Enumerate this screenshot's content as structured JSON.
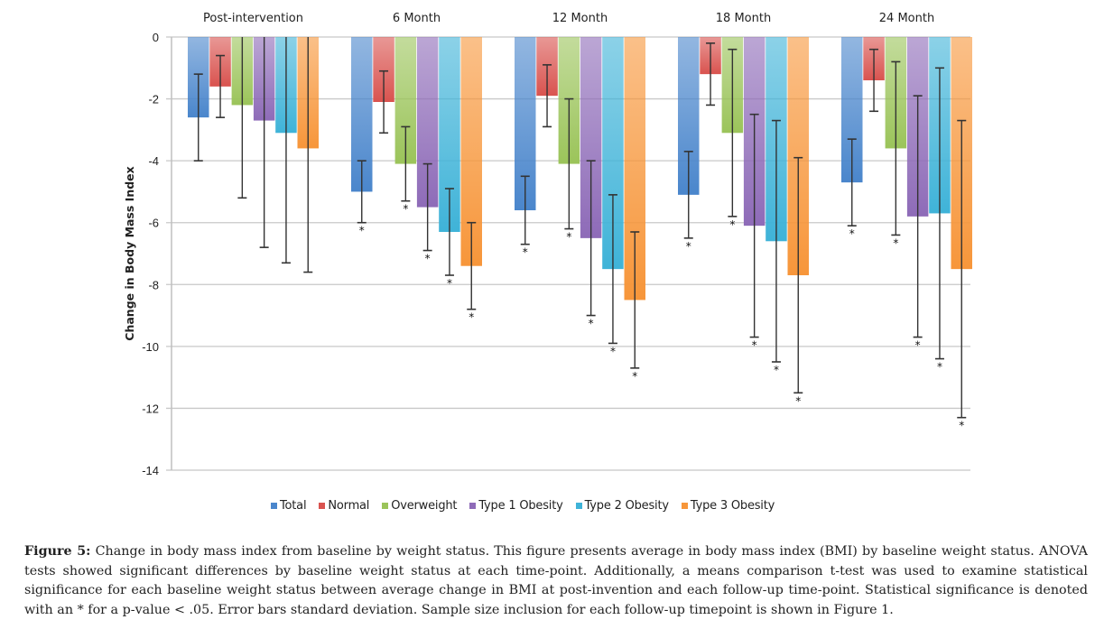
{
  "chart_data": {
    "type": "bar",
    "title": "",
    "xlabel": "",
    "ylabel": "Change in Body Mass Index",
    "ylim": [
      -14,
      0
    ],
    "yticks": [
      0,
      -2,
      -4,
      -6,
      -8,
      -10,
      -12,
      -14
    ],
    "ytick_labels": [
      "0",
      "-2",
      "-4",
      "-6",
      "-8",
      "-10",
      "-12",
      "-14"
    ],
    "grid": true,
    "legend_position": "bottom",
    "categories": [
      "Post-intervention",
      "6 Month",
      "12 Month",
      "18 Month",
      "24 Month"
    ],
    "series": [
      {
        "name": "Total",
        "color": "#4a86cc",
        "values": [
          -2.6,
          -5.0,
          -5.6,
          -5.1,
          -4.7
        ],
        "error": [
          1.4,
          1.0,
          1.1,
          1.4,
          1.4
        ],
        "significant": [
          false,
          true,
          true,
          true,
          true
        ]
      },
      {
        "name": "Normal",
        "color": "#d9534f",
        "values": [
          -1.6,
          -2.1,
          -1.9,
          -1.2,
          -1.4
        ],
        "error": [
          1.0,
          1.0,
          1.0,
          1.0,
          1.0
        ],
        "significant": [
          false,
          false,
          false,
          false,
          false
        ]
      },
      {
        "name": "Overweight",
        "color": "#9bc45a",
        "values": [
          -2.2,
          -4.1,
          -4.1,
          -3.1,
          -3.6
        ],
        "error": [
          3.0,
          1.2,
          2.1,
          2.7,
          2.8
        ],
        "significant": [
          false,
          true,
          true,
          true,
          true
        ]
      },
      {
        "name": "Type 1 Obesity",
        "color": "#8e6bb8",
        "values": [
          -2.7,
          -5.5,
          -6.5,
          -6.1,
          -5.8
        ],
        "error": [
          4.1,
          1.4,
          2.5,
          3.6,
          3.9
        ],
        "significant": [
          false,
          true,
          true,
          true,
          true
        ]
      },
      {
        "name": "Type 2 Obesity",
        "color": "#3fb3d8",
        "values": [
          -3.1,
          -6.3,
          -7.5,
          -6.6,
          -5.7
        ],
        "error": [
          4.2,
          1.4,
          2.4,
          3.9,
          4.7
        ],
        "significant": [
          false,
          true,
          true,
          true,
          true
        ]
      },
      {
        "name": "Type 3 Obesity",
        "color": "#f7963a",
        "values": [
          -3.6,
          -7.4,
          -8.5,
          -7.7,
          -7.5
        ],
        "error": [
          4.0,
          1.4,
          2.2,
          3.8,
          4.8
        ],
        "significant": [
          false,
          true,
          true,
          true,
          true
        ]
      }
    ],
    "significance_marker": "*"
  },
  "caption": {
    "label": "Figure 5:",
    "text": "Change in body mass index from baseline by weight status. This figure presents average in body mass index (BMI) by baseline weight status. ANOVA tests showed significant differences by baseline weight status at each time-point. Additionally, a means comparison t-test was used to examine statistical significance for each baseline weight status between average change in BMI at post-invention and each follow-up time-point. Statistical significance is denoted with an * for a p-value < .05. Error bars standard deviation. Sample size inclusion for each follow-up timepoint is shown in Figure 1."
  }
}
